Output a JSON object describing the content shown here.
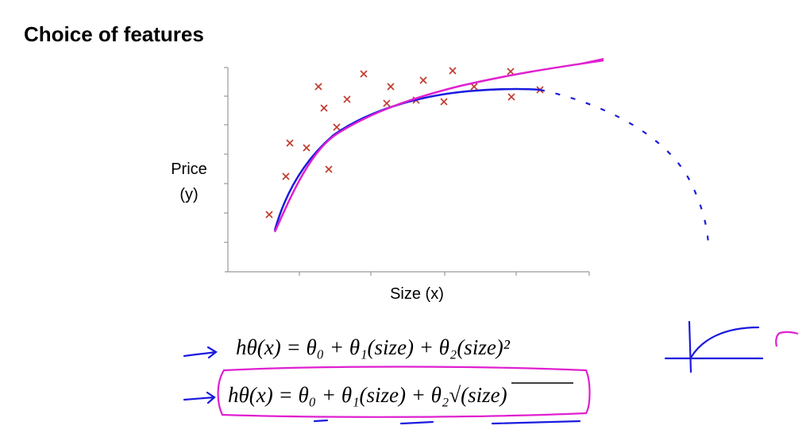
{
  "title": "Choice of features",
  "plot": {
    "y_label_lines": [
      "Price",
      "(y)"
    ],
    "x_label": "Size (x)"
  },
  "formulas": [
    "hθ(x) = θ₀ + θ₁(size) + θ₂(size)²",
    "hθ(x) = θ₀ + θ₁(size) + θ₂√(size)"
  ]
}
